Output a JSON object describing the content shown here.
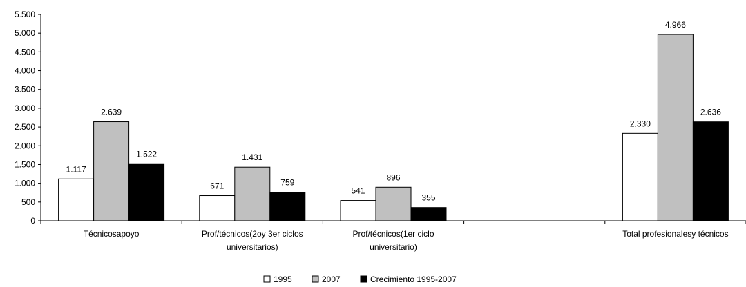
{
  "chart_data": {
    "type": "bar",
    "title": "",
    "xlabel": "",
    "ylabel": "",
    "ylim": [
      0,
      5500
    ],
    "yticks": [
      0,
      500,
      1000,
      1500,
      2000,
      2500,
      3000,
      3500,
      4000,
      4500,
      5000,
      5500
    ],
    "ytick_labels": [
      "0",
      "500",
      "1.000",
      "1.500",
      "2.000",
      "2.500",
      "3.000",
      "3.500",
      "4.000",
      "4.500",
      "5.000",
      "5.500"
    ],
    "categories": [
      [
        "Técnicosapoyo"
      ],
      [
        "Prof/técnicos(2oy 3er ciclos",
        "universitarios)"
      ],
      [
        "Prof/técnicos(1er ciclo",
        "universitario)"
      ],
      [
        ""
      ],
      [
        "Total profesionalesy técnicos"
      ]
    ],
    "series": [
      {
        "name": "1995",
        "color": "#ffffff",
        "values": [
          1117,
          671,
          541,
          null,
          2330
        ],
        "labels": [
          "1.117",
          "671",
          "541",
          "",
          "2.330"
        ]
      },
      {
        "name": "2007",
        "color": "#c0c0c0",
        "values": [
          2639,
          1431,
          896,
          null,
          4966
        ],
        "labels": [
          "2.639",
          "1.431",
          "896",
          "",
          "4.966"
        ]
      },
      {
        "name": "Crecimiento 1995-2007",
        "color": "#000000",
        "values": [
          1522,
          759,
          355,
          null,
          2636
        ],
        "labels": [
          "1.522",
          "759",
          "355",
          "",
          "2.636"
        ]
      }
    ],
    "legend_position": "bottom-center",
    "grid": false
  }
}
